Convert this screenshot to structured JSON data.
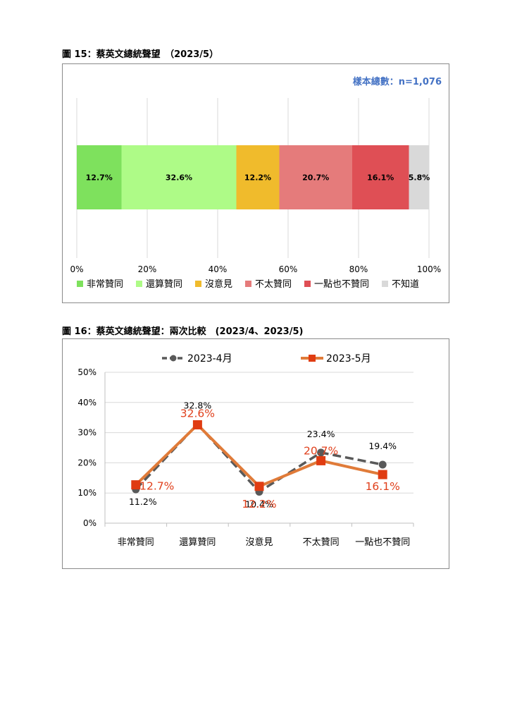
{
  "figure15": {
    "caption": "圖 15：蔡英文總統聲望　（2023/5）",
    "sample_note": "樣本總數：n=1,076"
  },
  "figure16": {
    "caption": "圖 16：蔡英文總統聲望：兩次比較　(2023/4、2023/5)"
  },
  "chart_data": [
    {
      "type": "bar",
      "stacked": true,
      "orientation": "horizontal",
      "categories": [
        "非常贊同",
        "還算贊同",
        "沒意見",
        "不太贊同",
        "一點也不贊同",
        "不知道"
      ],
      "values": [
        12.7,
        32.6,
        12.2,
        20.7,
        16.1,
        5.8
      ],
      "data_labels": [
        "12.7%",
        "32.6%",
        "12.2%",
        "20.7%",
        "16.1%",
        "5.8%"
      ],
      "colors": [
        "#7ee15d",
        "#aefb87",
        "#f0bb2c",
        "#e57b7b",
        "#df4f55",
        "#d9d9d9"
      ],
      "x_ticks": [
        "0%",
        "20%",
        "40%",
        "60%",
        "80%",
        "100%"
      ],
      "xlim": [
        0,
        100
      ],
      "grid": true,
      "legend_position": "bottom"
    },
    {
      "type": "line",
      "categories": [
        "非常贊同",
        "還算贊同",
        "沒意見",
        "不太贊同",
        "一點也不贊同"
      ],
      "series": [
        {
          "name": "2023-4月",
          "values": [
            11.2,
            32.8,
            10.4,
            23.4,
            19.4
          ],
          "labels": [
            "11.2%",
            "32.8%",
            "10.4%",
            "23.4%",
            "19.4%"
          ],
          "color": "#595959",
          "style": "dashed",
          "marker": "circle"
        },
        {
          "name": "2023-5月",
          "values": [
            12.7,
            32.6,
            12.2,
            20.7,
            16.1
          ],
          "labels": [
            "12.7%",
            "32.6%",
            "12.2%",
            "20.7%",
            "16.1%"
          ],
          "color": "#e07b39",
          "label_color": "#e0401c",
          "style": "solid",
          "marker": "square"
        }
      ],
      "y_ticks": [
        "0%",
        "10%",
        "20%",
        "30%",
        "40%",
        "50%"
      ],
      "ylim": [
        0,
        50
      ],
      "grid": true,
      "legend_position": "top"
    }
  ]
}
